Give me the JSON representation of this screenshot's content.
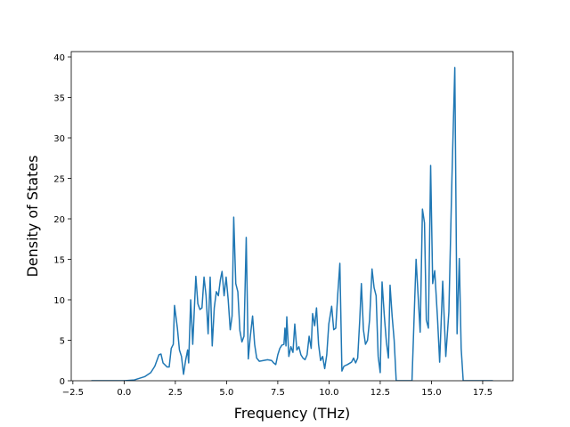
{
  "chart_data": {
    "type": "line",
    "xlabel": "Frequency (THz)",
    "ylabel": "Density of States",
    "color": "#1f77b4",
    "x": [
      -1.6,
      -0.5,
      0.0,
      0.5,
      1.0,
      1.3,
      1.5,
      1.7,
      1.8,
      1.9,
      2.1,
      2.2,
      2.3,
      2.4,
      2.46,
      2.6,
      2.7,
      2.8,
      2.9,
      3.0,
      3.1,
      3.15,
      3.25,
      3.35,
      3.5,
      3.6,
      3.7,
      3.8,
      3.9,
      4.0,
      4.1,
      4.2,
      4.3,
      4.4,
      4.5,
      4.6,
      4.7,
      4.78,
      4.88,
      4.98,
      5.08,
      5.18,
      5.27,
      5.35,
      5.45,
      5.55,
      5.65,
      5.75,
      5.85,
      5.96,
      6.06,
      6.16,
      6.27,
      6.37,
      6.47,
      6.6,
      6.8,
      7.0,
      7.2,
      7.3,
      7.4,
      7.5,
      7.6,
      7.7,
      7.8,
      7.85,
      7.9,
      7.94,
      8.04,
      8.14,
      8.24,
      8.33,
      8.43,
      8.53,
      8.63,
      8.73,
      8.83,
      8.93,
      9.03,
      9.13,
      9.2,
      9.3,
      9.39,
      9.49,
      9.59,
      9.69,
      9.79,
      9.89,
      9.99,
      10.13,
      10.23,
      10.33,
      10.43,
      10.53,
      10.63,
      10.73,
      10.9,
      11.1,
      11.2,
      11.3,
      11.4,
      11.5,
      11.58,
      11.68,
      11.78,
      11.88,
      11.98,
      12.1,
      12.2,
      12.3,
      12.4,
      12.5,
      12.59,
      12.7,
      12.8,
      12.9,
      12.98,
      13.08,
      13.18,
      13.28,
      14.05,
      14.25,
      14.45,
      14.56,
      14.66,
      14.75,
      14.85,
      14.96,
      15.06,
      15.16,
      15.3,
      15.4,
      15.55,
      15.7,
      15.85,
      16.0,
      16.14,
      16.25,
      16.36,
      16.45,
      16.55,
      18.0
    ],
    "values": [
      0,
      0,
      0,
      0.1,
      0.5,
      1.0,
      1.8,
      3.2,
      3.3,
      2.2,
      1.7,
      1.7,
      4.0,
      4.5,
      9.3,
      6.5,
      3.8,
      3.0,
      0.8,
      2.5,
      3.8,
      2.2,
      10.0,
      4.5,
      12.9,
      9.5,
      8.8,
      9.0,
      12.8,
      10.5,
      5.8,
      12.8,
      4.3,
      9.0,
      11.0,
      10.5,
      12.5,
      13.5,
      10.5,
      12.8,
      10.0,
      6.3,
      8.0,
      20.2,
      12.0,
      11.0,
      6.2,
      4.8,
      5.5,
      17.7,
      2.7,
      5.5,
      8.0,
      4.5,
      2.8,
      2.4,
      2.5,
      2.6,
      2.5,
      2.2,
      2.0,
      3.2,
      4.0,
      4.4,
      4.5,
      6.5,
      4.3,
      7.9,
      3.0,
      4.2,
      3.5,
      7.0,
      3.8,
      4.2,
      3.2,
      2.8,
      2.6,
      3.2,
      5.5,
      4.0,
      8.3,
      6.8,
      9.0,
      4.5,
      2.5,
      3.0,
      1.5,
      3.2,
      7.0,
      9.2,
      6.3,
      6.5,
      10.8,
      14.5,
      1.2,
      1.8,
      2.0,
      2.3,
      2.8,
      2.2,
      2.8,
      7.5,
      12.0,
      6.3,
      4.5,
      5.0,
      7.5,
      13.8,
      11.5,
      10.5,
      3.0,
      1.0,
      12.2,
      8.0,
      4.8,
      2.8,
      11.8,
      8.0,
      5.0,
      0,
      0,
      15.0,
      6.0,
      21.2,
      19.5,
      7.5,
      6.5,
      26.6,
      12.0,
      13.6,
      7.5,
      2.3,
      12.3,
      3.0,
      8.5,
      25.0,
      38.7,
      5.8,
      15.1,
      4.0,
      0,
      0
    ],
    "xlim": [
      -2.58,
      18.98
    ],
    "ylim": [
      0,
      40.66
    ],
    "xticks": [
      {
        "value": -2.5,
        "label": "−2.5"
      },
      {
        "value": 0,
        "label": "0.0"
      },
      2.5,
      {
        "value": 5,
        "label": "5.0"
      },
      7.5,
      {
        "value": 10,
        "label": "10.0"
      },
      12.5,
      {
        "value": 15,
        "label": "15.0"
      },
      17.5
    ],
    "yticks": [
      0,
      5,
      10,
      15,
      20,
      25,
      30,
      35,
      40
    ]
  }
}
